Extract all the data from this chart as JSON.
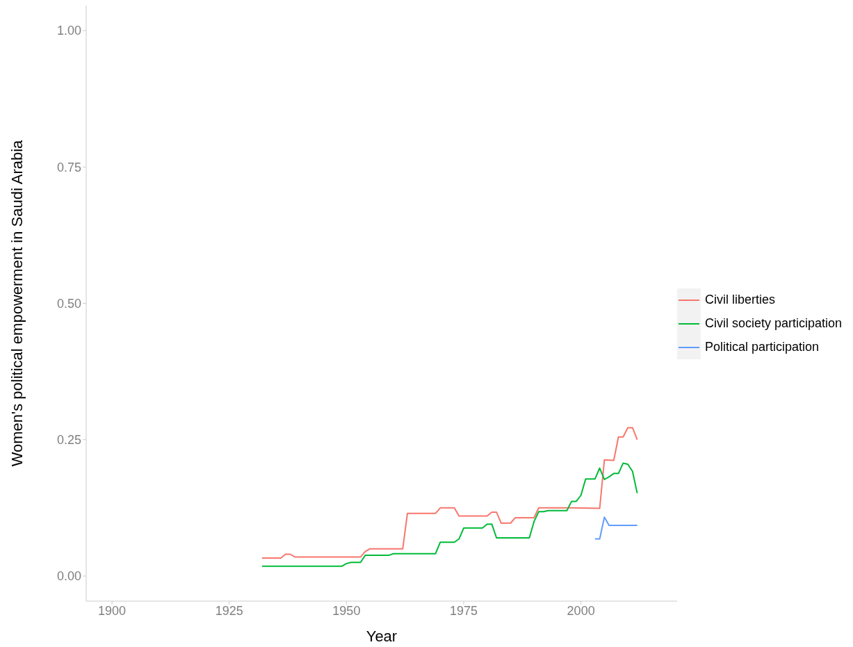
{
  "chart_data": {
    "type": "line",
    "xlabel": "Year",
    "ylabel": "Women's political empowerment in Saudi Arabia",
    "xlim": [
      1894.5,
      2020.5
    ],
    "xticks": [
      1900,
      1925,
      1950,
      1975,
      2000
    ],
    "ylim": [
      -0.046,
      1.046
    ],
    "yticks": [
      {
        "value": 0,
        "label": "0.00"
      },
      {
        "value": 0.25,
        "label": "0.25"
      },
      {
        "value": 0.5,
        "label": "0.50"
      },
      {
        "value": 0.75,
        "label": "0.75"
      },
      {
        "value": 1,
        "label": "1.00"
      }
    ],
    "grid": false,
    "legend": "right",
    "marker": "none",
    "line_style": "solid",
    "series": [
      {
        "name": "Civil liberties",
        "color": "#f8766d",
        "x": [
          1932,
          1936,
          1937,
          1938,
          1939,
          1953,
          1954,
          1955,
          1962,
          1963,
          1969,
          1970,
          1973,
          1974,
          1980,
          1981,
          1982,
          1983,
          1985,
          1986,
          1990,
          1991,
          1998,
          2004,
          2005,
          2007,
          2008,
          2009,
          2010,
          2011,
          2012
        ],
        "values": [
          0.033,
          0.033,
          0.04,
          0.04,
          0.035,
          0.035,
          0.045,
          0.05,
          0.05,
          0.115,
          0.115,
          0.125,
          0.125,
          0.11,
          0.11,
          0.117,
          0.117,
          0.097,
          0.097,
          0.107,
          0.107,
          0.125,
          0.125,
          0.124,
          0.213,
          0.212,
          0.255,
          0.255,
          0.272,
          0.272,
          0.25
        ]
      },
      {
        "name": "Civil society participation",
        "color": "#00ba38",
        "x": [
          1932,
          1949,
          1950,
          1951,
          1953,
          1954,
          1959,
          1960,
          1969,
          1970,
          1973,
          1974,
          1975,
          1979,
          1980,
          1981,
          1982,
          1989,
          1990,
          1991,
          1992,
          1993,
          1997,
          1998,
          1999,
          2000,
          2001,
          2003,
          2004,
          2005,
          2006,
          2007,
          2008,
          2009,
          2010,
          2011,
          2012
        ],
        "values": [
          0.018,
          0.018,
          0.023,
          0.025,
          0.025,
          0.038,
          0.038,
          0.041,
          0.041,
          0.062,
          0.062,
          0.068,
          0.088,
          0.088,
          0.095,
          0.095,
          0.07,
          0.07,
          0.1,
          0.118,
          0.118,
          0.12,
          0.12,
          0.137,
          0.137,
          0.148,
          0.178,
          0.178,
          0.198,
          0.177,
          0.182,
          0.188,
          0.188,
          0.207,
          0.205,
          0.192,
          0.152
        ]
      },
      {
        "name": "Political participation",
        "color": "#619cff",
        "x": [
          2003,
          2004,
          2005,
          2006,
          2012
        ],
        "values": [
          0.068,
          0.068,
          0.108,
          0.093,
          0.093
        ]
      }
    ]
  }
}
